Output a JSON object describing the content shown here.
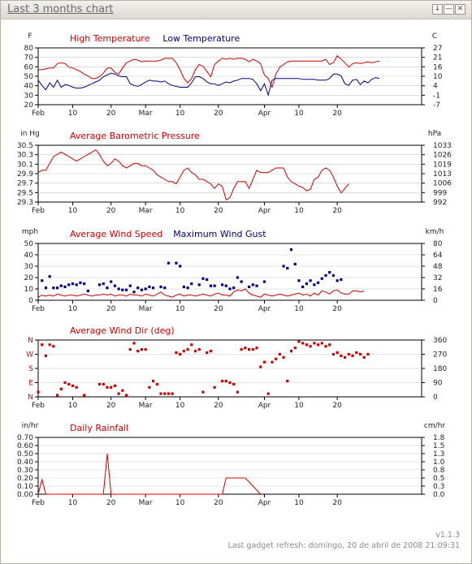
{
  "window": {
    "title": "Last 3 months chart"
  },
  "footer": {
    "version": "v1.1.3",
    "refresh": "Last gadget refresh: domingo, 20 de abril de 2008 21:09:31"
  },
  "colors": {
    "red": "#cc0000",
    "blue": "#000080",
    "grid": "#c8c8c8"
  },
  "chart_data": [
    {
      "type": "line",
      "left_unit": "F",
      "right_unit": "C",
      "legend": [
        "High Temperature",
        "Low Temperature"
      ],
      "yticks_left": [
        "80",
        "70",
        "60",
        "50",
        "40",
        "30",
        "20"
      ],
      "yticks_right": [
        "27",
        "21",
        "16",
        "10",
        "4",
        "-1",
        "-7"
      ],
      "ylim": [
        20,
        85
      ],
      "xticks": [
        "Feb",
        "10",
        "20",
        "Mar",
        "10",
        "20",
        "Apr",
        "10",
        "20"
      ],
      "series": [
        {
          "name": "High Temperature",
          "color": "red",
          "values": [
            60,
            60,
            61,
            62,
            62,
            67,
            68,
            67,
            63,
            62,
            60,
            58,
            55,
            53,
            50,
            50,
            52,
            56,
            62,
            62,
            57,
            55,
            62,
            68,
            70,
            72,
            71,
            69,
            70,
            70,
            70,
            70,
            71,
            73,
            73,
            73,
            68,
            60,
            50,
            45,
            50,
            60,
            66,
            64,
            58,
            52,
            66,
            70,
            73,
            72,
            73,
            72,
            73,
            73,
            72,
            69,
            72,
            70,
            67,
            54,
            50,
            40,
            55,
            63,
            66,
            69,
            70,
            70,
            70,
            70,
            70,
            70,
            70,
            70,
            70,
            72,
            66,
            68,
            76,
            72,
            68,
            63,
            67,
            68,
            67,
            68,
            69,
            68,
            69,
            70
          ]
        },
        {
          "name": "Low Temperature",
          "color": "blue",
          "values": [
            48,
            42,
            37,
            45,
            40,
            48,
            40,
            43,
            42,
            40,
            39,
            39,
            40,
            42,
            44,
            46,
            48,
            52,
            54,
            56,
            55,
            53,
            52,
            52,
            44,
            42,
            41,
            43,
            46,
            48,
            47,
            47,
            46,
            47,
            44,
            42,
            41,
            40,
            40,
            40,
            45,
            52,
            52,
            50,
            46,
            44,
            44,
            42,
            44,
            46,
            45,
            47,
            48,
            50,
            50,
            50,
            49,
            44,
            36,
            44,
            31,
            48,
            50,
            50,
            50,
            50,
            50,
            50,
            50,
            49,
            49,
            49,
            49,
            48,
            48,
            48,
            50,
            55,
            55,
            53,
            44,
            42,
            48,
            49,
            43,
            47,
            45,
            49,
            51,
            50
          ]
        }
      ]
    },
    {
      "type": "line",
      "left_unit": "in Hg",
      "right_unit": "hPa",
      "legend": [
        "Average Barometric Pressure"
      ],
      "yticks_left": [
        "30.5",
        "30.3",
        "30.1",
        "29.9",
        "29.7",
        "29.5",
        "29.3"
      ],
      "yticks_right": [
        "1033",
        "1026",
        "1019",
        "1013",
        "1006",
        "999",
        "992"
      ],
      "ylim": [
        29.3,
        30.55
      ],
      "xticks": [
        "Feb",
        "10",
        "20",
        "Mar",
        "10",
        "20",
        "Apr",
        "10",
        "20"
      ],
      "series": [
        {
          "name": "Average Barometric Pressure",
          "color": "red",
          "values": [
            29.95,
            30.0,
            30.0,
            30.15,
            30.3,
            30.35,
            30.4,
            30.35,
            30.3,
            30.25,
            30.2,
            30.25,
            30.3,
            30.35,
            30.4,
            30.45,
            30.35,
            30.2,
            30.1,
            30.15,
            30.25,
            30.2,
            30.1,
            30.05,
            30.1,
            30.15,
            30.15,
            30.1,
            30.1,
            30.05,
            30.0,
            29.9,
            29.85,
            29.8,
            29.75,
            29.75,
            29.7,
            29.85,
            30.0,
            30.05,
            29.95,
            29.9,
            29.8,
            29.8,
            29.75,
            29.7,
            29.6,
            29.7,
            29.65,
            29.35,
            29.4,
            29.6,
            29.75,
            29.75,
            29.75,
            29.6,
            29.8,
            30.0,
            29.95,
            29.95,
            29.95,
            30.0,
            30.05,
            30.05,
            30.05,
            29.85,
            29.75,
            29.7,
            29.65,
            29.62,
            29.55,
            29.58,
            29.8,
            29.85,
            30.0,
            30.05,
            30.0,
            29.85,
            29.65,
            29.5,
            29.6,
            29.7
          ]
        }
      ]
    },
    {
      "type": "scatter",
      "left_unit": "mph",
      "right_unit": "km/h",
      "legend": [
        "Average Wind Speed",
        "Maximum Wind Gust"
      ],
      "yticks_left": [
        "50",
        "40",
        "30",
        "20",
        "10",
        "0"
      ],
      "yticks_right": [
        "80",
        "64",
        "48",
        "32",
        "16",
        "0"
      ],
      "ylim": [
        0,
        55
      ],
      "xticks": [
        "Feb",
        "10",
        "20",
        "Mar",
        "10",
        "20",
        "Apr",
        "10",
        "20"
      ],
      "series": [
        {
          "name": "Average Wind Speed",
          "color": "red",
          "style": "line",
          "values": [
            3,
            5,
            4,
            5,
            4,
            6,
            5,
            4,
            5,
            5,
            4,
            5,
            6,
            5,
            4,
            5,
            5,
            6,
            5,
            6,
            4,
            5,
            5,
            4,
            6,
            5,
            5,
            4,
            6,
            5,
            4,
            6,
            8,
            5,
            4,
            3,
            5,
            6,
            4,
            5,
            5,
            4,
            5,
            6,
            5,
            4,
            6,
            7,
            5,
            5,
            4,
            8,
            10,
            9,
            11,
            7,
            5,
            4,
            3,
            6,
            5,
            4,
            5,
            6,
            5,
            4,
            5,
            6,
            7,
            5,
            6,
            4,
            7,
            5,
            9,
            8,
            6,
            9,
            10,
            7,
            6,
            6,
            9,
            9,
            8,
            9
          ]
        },
        {
          "name": "Maximum Wind Gust",
          "color": "blue",
          "style": "points",
          "x": [
            1,
            2,
            3,
            4,
            5,
            6,
            7,
            8,
            9,
            10,
            11,
            12,
            13,
            16,
            17,
            18,
            19,
            20,
            21,
            22,
            23,
            24,
            25,
            26,
            27,
            28,
            29,
            30,
            32,
            33,
            34,
            36,
            37,
            38,
            39,
            40,
            42,
            43,
            44,
            45,
            46,
            48,
            49,
            50,
            51,
            52,
            53,
            55,
            56,
            57,
            59,
            64,
            65,
            66,
            67,
            68,
            69,
            70,
            71,
            72,
            73,
            74,
            75,
            76,
            77,
            78,
            79
          ],
          "values": [
            19,
            12,
            23,
            12,
            12,
            14,
            13,
            15,
            16,
            15,
            17,
            16,
            9,
            15,
            16,
            12,
            18,
            14,
            11,
            10,
            10,
            14,
            8,
            12,
            10,
            11,
            13,
            12,
            13,
            12,
            36,
            36,
            33,
            13,
            12,
            16,
            15,
            21,
            20,
            14,
            14,
            15,
            14,
            11,
            12,
            22,
            18,
            13,
            15,
            14,
            18,
            33,
            31,
            49,
            35,
            19,
            13,
            16,
            19,
            15,
            17,
            21,
            24,
            27,
            24,
            19,
            20
          ]
        }
      ]
    },
    {
      "type": "scatter",
      "left_unit": "",
      "right_unit": "",
      "legend": [
        "Average Wind Dir (deg)"
      ],
      "yticks_left": [
        "N",
        "W",
        "S",
        "E",
        "N"
      ],
      "yticks_right": [
        "360",
        "270",
        "180",
        "90",
        "0"
      ],
      "ylim": [
        0,
        360
      ],
      "xticks": [
        "Feb",
        "10",
        "20",
        "Mar",
        "10",
        "20",
        "Apr",
        "10",
        "20"
      ],
      "series": [
        {
          "name": "Average Wind Dir (deg)",
          "color": "red",
          "x": [
            0,
            1,
            2,
            3,
            4,
            5,
            6,
            7,
            8,
            9,
            10,
            12,
            16,
            17,
            18,
            19,
            20,
            21,
            22,
            23,
            24,
            25,
            26,
            27,
            28,
            29,
            30,
            31,
            32,
            33,
            34,
            35,
            36,
            37,
            38,
            39,
            40,
            41,
            42,
            43,
            44,
            45,
            46,
            48,
            49,
            50,
            51,
            52,
            53,
            54,
            55,
            56,
            57,
            58,
            59,
            60,
            61,
            62,
            63,
            64,
            65,
            66,
            67,
            68,
            69,
            70,
            71,
            72,
            73,
            74,
            75,
            76,
            77,
            78,
            79,
            80,
            81,
            82,
            83,
            84,
            85,
            86
          ],
          "values": [
            30,
            330,
            260,
            330,
            320,
            10,
            50,
            90,
            80,
            70,
            60,
            10,
            80,
            80,
            60,
            60,
            70,
            20,
            40,
            10,
            300,
            340,
            290,
            300,
            300,
            60,
            100,
            80,
            20,
            20,
            20,
            20,
            280,
            270,
            290,
            300,
            330,
            290,
            300,
            30,
            280,
            290,
            60,
            100,
            100,
            90,
            80,
            30,
            300,
            310,
            300,
            300,
            310,
            190,
            220,
            20,
            220,
            240,
            270,
            250,
            100,
            290,
            310,
            350,
            340,
            330,
            320,
            340,
            330,
            340,
            320,
            330,
            270,
            280,
            260,
            250,
            270,
            260,
            280,
            270,
            250,
            270
          ]
        }
      ]
    },
    {
      "type": "line",
      "left_unit": "in/hr",
      "right_unit": "cm/hr",
      "legend": [
        "Daily Rainfall"
      ],
      "yticks_left": [
        "0.70",
        "0.60",
        "0.50",
        "0.40",
        "0.30",
        "0.20",
        "0.10",
        "0.00"
      ],
      "yticks_right": [
        "1.8",
        "1.5",
        "1.3",
        "1.0",
        "0.8",
        "0.5",
        "0.3",
        "0.0"
      ],
      "ylim": [
        0,
        0.7
      ],
      "xticks": [
        "Feb",
        "10",
        "20",
        "Mar",
        "10",
        "20",
        "Apr",
        "10",
        "20"
      ],
      "series": [
        {
          "name": "Daily Rainfall",
          "color": "red",
          "x": [
            0,
            1,
            2,
            17,
            18,
            19,
            48,
            49,
            50,
            54,
            55,
            56,
            57,
            58
          ],
          "values": [
            0,
            0.18,
            0,
            0,
            0.5,
            0,
            0,
            0.2,
            0.2,
            0.2,
            0.15,
            0.1,
            0.05,
            0
          ]
        }
      ]
    }
  ]
}
